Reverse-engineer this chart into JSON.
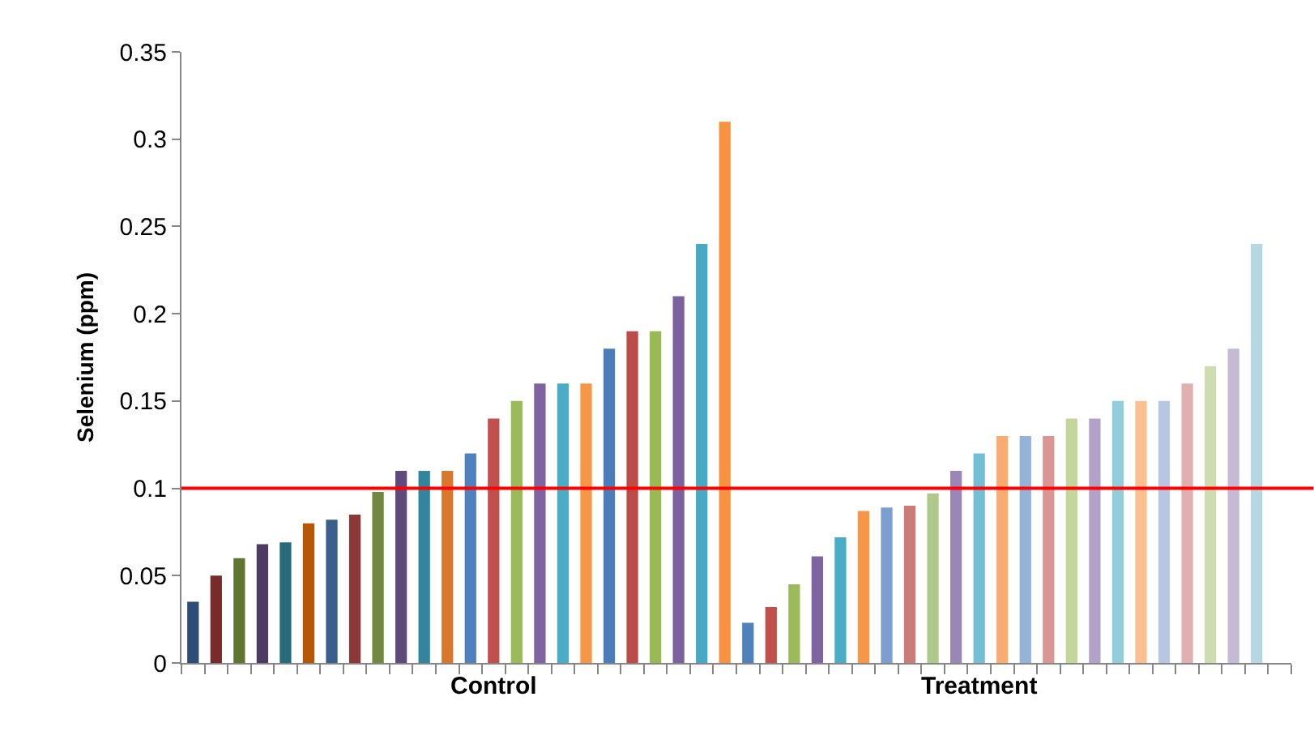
{
  "chart_data": {
    "type": "bar",
    "ylabel": "Selenium (ppm)",
    "categories": [
      null,
      null,
      null,
      null,
      null,
      null,
      null,
      null,
      null,
      null,
      null,
      null,
      null,
      "Control",
      null,
      null,
      null,
      null,
      null,
      null,
      null,
      null,
      null,
      null,
      null,
      null,
      null,
      null,
      null,
      null,
      null,
      null,
      null,
      null,
      "Treatment",
      null,
      null,
      null,
      null,
      null,
      null,
      null,
      null,
      null,
      null,
      null,
      null
    ],
    "values": [
      0.035,
      0.05,
      0.06,
      0.068,
      0.069,
      0.08,
      0.082,
      0.085,
      0.098,
      0.11,
      0.11,
      0.11,
      0.12,
      0.14,
      0.15,
      0.16,
      0.16,
      0.16,
      0.18,
      0.19,
      0.19,
      0.21,
      0.24,
      0.31,
      0.023,
      0.032,
      0.045,
      0.061,
      0.072,
      0.087,
      0.089,
      0.09,
      0.097,
      0.11,
      0.12,
      0.13,
      0.13,
      0.13,
      0.14,
      0.14,
      0.15,
      0.15,
      0.15,
      0.16,
      0.17,
      0.18,
      0.24
    ],
    "colors": [
      "#2c4d75",
      "#772c2a",
      "#5f7530",
      "#4d3b62",
      "#276a7c",
      "#b65708",
      "#3a5f8b",
      "#8c3836",
      "#71893f",
      "#5e4b7c",
      "#31859c",
      "#d9772d",
      "#4f81bd",
      "#c0504d",
      "#9bbb59",
      "#8064a2",
      "#4bacc6",
      "#f79646",
      "#4a7ebb",
      "#be4b48",
      "#98b954",
      "#7d60a0",
      "#46aac5",
      "#f69240",
      "#4f81bd",
      "#c0504d",
      "#9bbb59",
      "#8064a2",
      "#4bacc6",
      "#f79646",
      "#7c9fd0",
      "#cd7b79",
      "#aec98a",
      "#9b87b7",
      "#74bfd5",
      "#f9ab70",
      "#95b3d7",
      "#d99694",
      "#c3d69b",
      "#b2a2c7",
      "#92cddc",
      "#fac090",
      "#b9c6e3",
      "#e0b0ae",
      "#cfdcb0",
      "#c5b9d6",
      "#b7d7e3"
    ],
    "ylim": [
      0,
      0.35
    ],
    "yticks": [
      0,
      0.05,
      0.1,
      0.15,
      0.2,
      0.25,
      0.3,
      0.35
    ],
    "ref_lines": [
      {
        "axis": "y",
        "value": 0.1,
        "color": "#ff0000"
      }
    ],
    "grid": false
  }
}
